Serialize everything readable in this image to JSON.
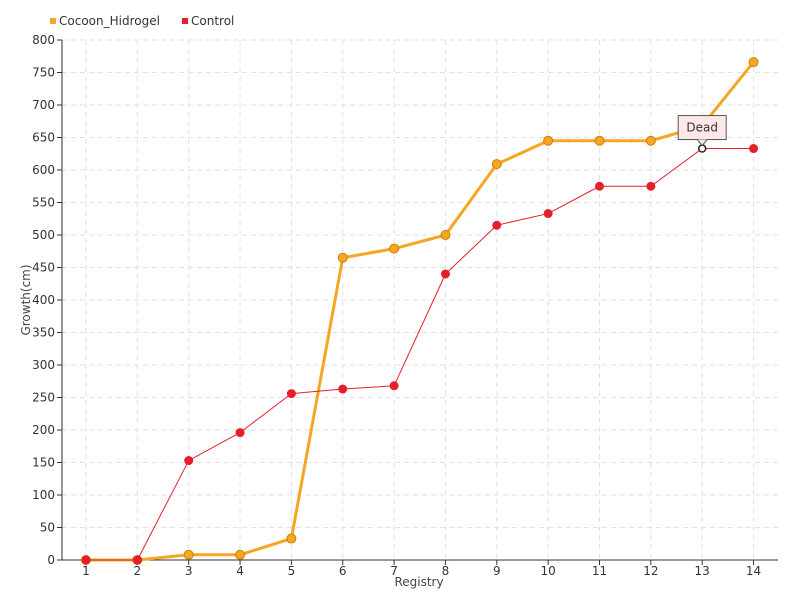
{
  "chart_data": {
    "type": "line",
    "xlabel": "Registry",
    "ylabel": "Growth(cm)",
    "categories": [
      "1",
      "2",
      "3",
      "4",
      "5",
      "6",
      "7",
      "8",
      "9",
      "10",
      "11",
      "12",
      "13",
      "14"
    ],
    "ylim": [
      0,
      800
    ],
    "yticks": [
      0,
      50,
      100,
      150,
      200,
      250,
      300,
      350,
      400,
      450,
      500,
      550,
      600,
      650,
      700,
      750,
      800
    ],
    "grid": true,
    "legend_position": "top-left",
    "series": [
      {
        "name": "Cocoon_Hidrogel",
        "color": "#f5a623",
        "values": [
          0,
          0,
          8,
          8,
          33,
          465,
          479,
          500,
          609,
          645,
          645,
          645,
          668,
          766
        ]
      },
      {
        "name": "Control",
        "color": "#e5202b",
        "values": [
          0,
          0,
          153,
          196,
          256,
          263,
          268,
          440,
          515,
          533,
          575,
          575,
          633,
          633
        ]
      }
    ],
    "annotation": {
      "text": "Dead",
      "series": "Control",
      "category": "13",
      "value": 633
    }
  }
}
